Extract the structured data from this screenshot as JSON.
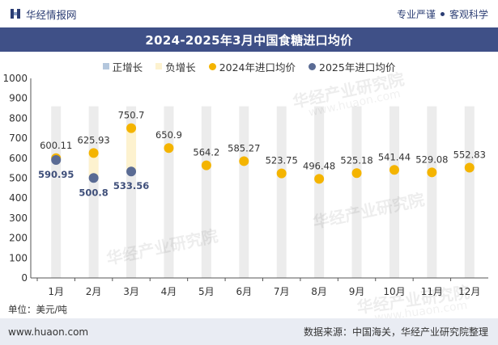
{
  "header": {
    "brand_name": "华经情报网",
    "tagline_left": "专业严谨",
    "tagline_right": "客观科学"
  },
  "footer": {
    "website": "www.huaon.com",
    "source": "数据来源：中国海关，华经产业研究院整理"
  },
  "watermark": {
    "text": "华经产业研究院",
    "url": "www.huaon.com"
  },
  "colors": {
    "title_bg": "#3f5087",
    "positive_growth": "#b4c7dd",
    "negative_growth": "#fdf2cf",
    "series_2024": "#f4b400",
    "series_2025": "#5a6b94",
    "column_bg": "#ececec"
  },
  "chart_data": {
    "type": "line",
    "title": "2024-2025年3月中国食糖进口均价",
    "unit": "单位：美元/吨",
    "categories": [
      "1月",
      "2月",
      "3月",
      "4月",
      "5月",
      "6月",
      "7月",
      "8月",
      "9月",
      "10月",
      "11月",
      "12月"
    ],
    "ylim": [
      0,
      1000
    ],
    "yticks": [
      0,
      100,
      200,
      300,
      400,
      500,
      600,
      700,
      800,
      900,
      1000
    ],
    "legend": [
      "正增长",
      "负增长",
      "2024年进口均价",
      "2025年进口均价"
    ],
    "legend_position": "top-center",
    "series": [
      {
        "name": "2024年进口均价",
        "values": [
          600.11,
          625.93,
          750.7,
          650.9,
          564.2,
          585.27,
          523.75,
          496.48,
          525.18,
          541.44,
          529.08,
          552.83
        ],
        "labels": [
          "600.11",
          "625.93",
          "750.7",
          "650.9",
          "564.2",
          "585.27",
          "523.75",
          "496.48",
          "525.18",
          "541.44",
          "529.08",
          "552.83"
        ]
      },
      {
        "name": "2025年进口均价",
        "values": [
          590.95,
          500.8,
          533.56,
          null,
          null,
          null,
          null,
          null,
          null,
          null,
          null,
          null
        ],
        "labels": [
          "590.95",
          "500.8",
          "533.56"
        ]
      }
    ],
    "growth_bars": [
      {
        "category": "1月",
        "from": 590.95,
        "to": 600.11,
        "type": "负增长"
      },
      {
        "category": "2月",
        "from": 500.8,
        "to": 625.93,
        "type": "负增长"
      },
      {
        "category": "3月",
        "from": 533.56,
        "to": 750.7,
        "type": "负增长"
      }
    ]
  }
}
